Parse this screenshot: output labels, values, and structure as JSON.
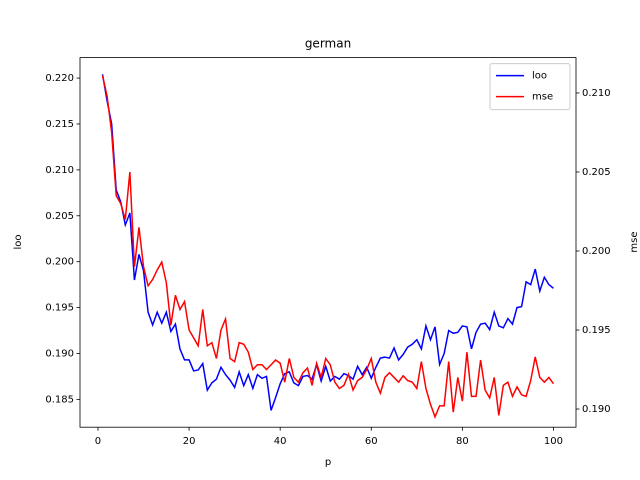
{
  "chart_data": {
    "type": "line",
    "title": "german",
    "xlabel": "p",
    "ylabel": "loo",
    "y2label": "mse",
    "x": [
      1,
      2,
      3,
      4,
      5,
      6,
      7,
      8,
      9,
      10,
      11,
      12,
      13,
      14,
      15,
      16,
      17,
      18,
      19,
      20,
      21,
      22,
      23,
      24,
      25,
      26,
      27,
      28,
      29,
      30,
      31,
      32,
      33,
      34,
      35,
      36,
      37,
      38,
      39,
      40,
      41,
      42,
      43,
      44,
      45,
      46,
      47,
      48,
      49,
      50,
      51,
      52,
      53,
      54,
      55,
      56,
      57,
      58,
      59,
      60,
      61,
      62,
      63,
      64,
      65,
      66,
      67,
      68,
      69,
      70,
      71,
      72,
      73,
      74,
      75,
      76,
      77,
      78,
      79,
      80,
      81,
      82,
      83,
      84,
      85,
      86,
      87,
      88,
      89,
      90,
      91,
      92,
      93,
      94,
      95,
      96,
      97,
      98,
      99,
      100
    ],
    "series": [
      {
        "name": "loo",
        "color": "#0000ff",
        "axis": "y",
        "values": [
          0.2204,
          0.2175,
          0.215,
          0.2078,
          0.2065,
          0.204,
          0.2053,
          0.198,
          0.2008,
          0.199,
          0.1945,
          0.1931,
          0.1945,
          0.1933,
          0.1945,
          0.1924,
          0.1932,
          0.1905,
          0.1893,
          0.1893,
          0.1881,
          0.1882,
          0.1889,
          0.186,
          0.1868,
          0.1872,
          0.1885,
          0.1877,
          0.1871,
          0.1863,
          0.188,
          0.1865,
          0.1877,
          0.1862,
          0.1877,
          0.1873,
          0.1875,
          0.1838,
          0.1852,
          0.1867,
          0.1878,
          0.188,
          0.1868,
          0.1865,
          0.1875,
          0.1876,
          0.1872,
          0.1888,
          0.187,
          0.1886,
          0.187,
          0.1875,
          0.1872,
          0.1878,
          0.1876,
          0.1872,
          0.1886,
          0.1877,
          0.1885,
          0.1873,
          0.1885,
          0.1895,
          0.1896,
          0.1895,
          0.1906,
          0.1893,
          0.1899,
          0.1907,
          0.191,
          0.1915,
          0.1905,
          0.193,
          0.1915,
          0.1929,
          0.1888,
          0.19,
          0.1925,
          0.1922,
          0.1923,
          0.193,
          0.1929,
          0.1905,
          0.1923,
          0.1932,
          0.1933,
          0.1926,
          0.1945,
          0.193,
          0.1928,
          0.1938,
          0.1932,
          0.195,
          0.1951,
          0.1978,
          0.1975,
          0.1992,
          0.1968,
          0.1983,
          0.1975,
          0.1971
        ]
      },
      {
        "name": "mse",
        "color": "#ff0000",
        "axis": "y2",
        "values": [
          0.2111,
          0.2098,
          0.2075,
          0.2035,
          0.203,
          0.202,
          0.205,
          0.199,
          0.2015,
          0.199,
          0.1978,
          0.1982,
          0.1988,
          0.1993,
          0.198,
          0.1953,
          0.1972,
          0.1963,
          0.1968,
          0.195,
          0.1945,
          0.194,
          0.1963,
          0.194,
          0.1942,
          0.1932,
          0.195,
          0.1957,
          0.1932,
          0.193,
          0.1942,
          0.1941,
          0.1936,
          0.1925,
          0.1928,
          0.1928,
          0.1925,
          0.1928,
          0.1931,
          0.1929,
          0.1917,
          0.1932,
          0.192,
          0.1917,
          0.1923,
          0.1926,
          0.1915,
          0.1929,
          0.192,
          0.1932,
          0.1928,
          0.1917,
          0.1913,
          0.1915,
          0.1922,
          0.1912,
          0.1918,
          0.192,
          0.1925,
          0.1932,
          0.1917,
          0.191,
          0.192,
          0.1923,
          0.192,
          0.1917,
          0.1921,
          0.1918,
          0.1917,
          0.1913,
          0.193,
          0.1913,
          0.1903,
          0.1895,
          0.1902,
          0.1902,
          0.193,
          0.1898,
          0.192,
          0.1905,
          0.1936,
          0.1908,
          0.1908,
          0.1931,
          0.1912,
          0.1907,
          0.192,
          0.1896,
          0.1915,
          0.1917,
          0.1908,
          0.1914,
          0.1909,
          0.1908,
          0.1918,
          0.1933,
          0.192,
          0.1917,
          0.192,
          0.1916
        ]
      }
    ],
    "xlim": [
      -3.95,
      104.95
    ],
    "xticks": [
      0,
      20,
      40,
      60,
      80,
      100
    ],
    "ylim": [
      0.18197,
      0.22223
    ],
    "yticks": [
      {
        "value": 0.185,
        "label": "0.185"
      },
      {
        "value": 0.19,
        "label": "0.190"
      },
      {
        "value": 0.195,
        "label": "0.195"
      },
      {
        "value": 0.2,
        "label": "0.200"
      },
      {
        "value": 0.205,
        "label": "0.205"
      },
      {
        "value": 0.21,
        "label": "0.210"
      },
      {
        "value": 0.215,
        "label": "0.215"
      },
      {
        "value": 0.22,
        "label": "0.220"
      }
    ],
    "y2lim": [
      0.18885,
      0.21224
    ],
    "y2ticks": [
      {
        "value": 0.19,
        "label": "0.190"
      },
      {
        "value": 0.195,
        "label": "0.195"
      },
      {
        "value": 0.2,
        "label": "0.200"
      },
      {
        "value": 0.205,
        "label": "0.205"
      },
      {
        "value": 0.21,
        "label": "0.210"
      }
    ],
    "legend": "upper right"
  }
}
